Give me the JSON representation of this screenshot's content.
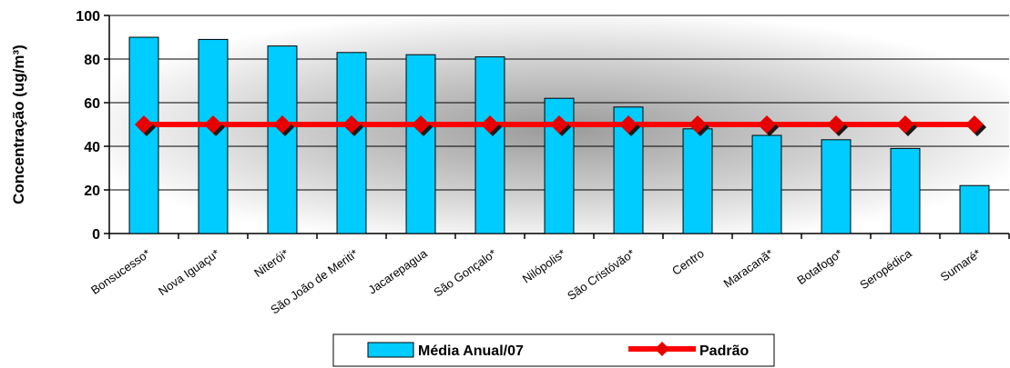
{
  "chart_data": {
    "type": "bar",
    "categories": [
      "Bonsucesso*",
      "Nova Iguaçu*",
      "Niterói*",
      "São João de Meriti*",
      "Jacarepagua",
      "São Gonçalo*",
      "Nilópolis*",
      "São Cristóvão*",
      "Centro",
      "Maracanã*",
      "Botafogo*",
      "Seropédica",
      "Sumaré*"
    ],
    "series": [
      {
        "name": "Média Anual/07",
        "kind": "bar",
        "color": "#00ccff",
        "values": [
          90,
          89,
          86,
          83,
          82,
          81,
          62,
          58,
          48,
          45,
          43,
          39,
          22
        ]
      },
      {
        "name": "Padrão",
        "kind": "line",
        "color": "#ff0000",
        "marker_color": "#e60000",
        "values": [
          50,
          50,
          50,
          50,
          50,
          50,
          50,
          50,
          50,
          50,
          50,
          50,
          50
        ]
      }
    ],
    "ylabel": "Concentração (ug/m³)",
    "ylim": [
      0,
      100
    ],
    "yticks": [
      0,
      20,
      40,
      60,
      80,
      100
    ],
    "grid": true,
    "legend_position": "bottom"
  }
}
